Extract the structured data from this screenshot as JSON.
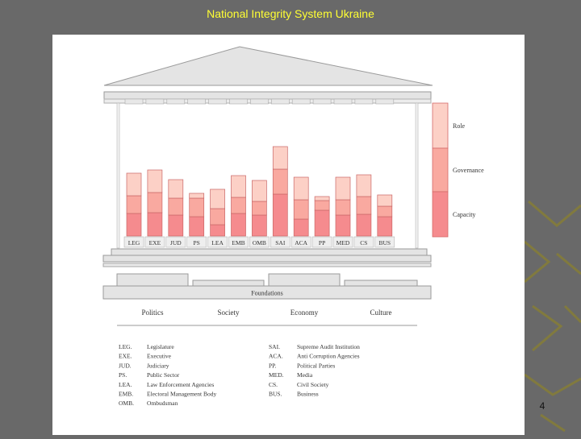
{
  "slide": {
    "title": "National Integrity System Ukraine",
    "page_number": "4"
  },
  "colors": {
    "role": "#fcd0c6",
    "governance": "#f9a9a0",
    "capacity": "#f58b8e",
    "structure_fill": "#e4e4e4",
    "structure_line": "#9a9a9a"
  },
  "dimensions": [
    "Role",
    "Governance",
    "Capacity"
  ],
  "pillars": [
    {
      "code": "LEG",
      "role": 28,
      "governance": 22,
      "capacity": 28
    },
    {
      "code": "EXE",
      "role": 28,
      "governance": 25,
      "capacity": 29
    },
    {
      "code": "JUD",
      "role": 23,
      "governance": 21,
      "capacity": 26
    },
    {
      "code": "PS",
      "role": 6,
      "governance": 23,
      "capacity": 24
    },
    {
      "code": "LEA",
      "role": 24,
      "governance": 20,
      "capacity": 14
    },
    {
      "code": "EMB",
      "role": 27,
      "governance": 20,
      "capacity": 28
    },
    {
      "code": "OMB",
      "role": 26,
      "governance": 17,
      "capacity": 26
    },
    {
      "code": "SAI",
      "role": 28,
      "governance": 31,
      "capacity": 52
    },
    {
      "code": "ACA",
      "role": 28,
      "governance": 24,
      "capacity": 21
    },
    {
      "code": "PP",
      "role": 5,
      "governance": 12,
      "capacity": 32
    },
    {
      "code": "MED",
      "role": 28,
      "governance": 19,
      "capacity": 26
    },
    {
      "code": "CS",
      "role": 27,
      "governance": 22,
      "capacity": 27
    },
    {
      "code": "BUS",
      "role": 14,
      "governance": 13,
      "capacity": 24
    }
  ],
  "foundations": {
    "label": "Foundations",
    "items": [
      "Politics",
      "Society",
      "Economy",
      "Culture"
    ]
  },
  "legend": [
    {
      "abbr": "LEG.",
      "name": "Legislature"
    },
    {
      "abbr": "EXE.",
      "name": "Executive"
    },
    {
      "abbr": "JUD.",
      "name": "Judiciary"
    },
    {
      "abbr": "PS.",
      "name": "Public Sector"
    },
    {
      "abbr": "LEA.",
      "name": "Law Enforcement Agencies"
    },
    {
      "abbr": "EMB.",
      "name": "Electoral Management Body"
    },
    {
      "abbr": "OMB.",
      "name": "Ombudsman"
    },
    {
      "abbr": "SAI.",
      "name": "Supreme Audit Institution"
    },
    {
      "abbr": "ACA.",
      "name": "Anti Corruption Agencies"
    },
    {
      "abbr": "PP.",
      "name": "Political Parties"
    },
    {
      "abbr": "MED.",
      "name": "Media"
    },
    {
      "abbr": "CS.",
      "name": "Civil Society"
    },
    {
      "abbr": "BUS.",
      "name": "Business"
    }
  ]
}
